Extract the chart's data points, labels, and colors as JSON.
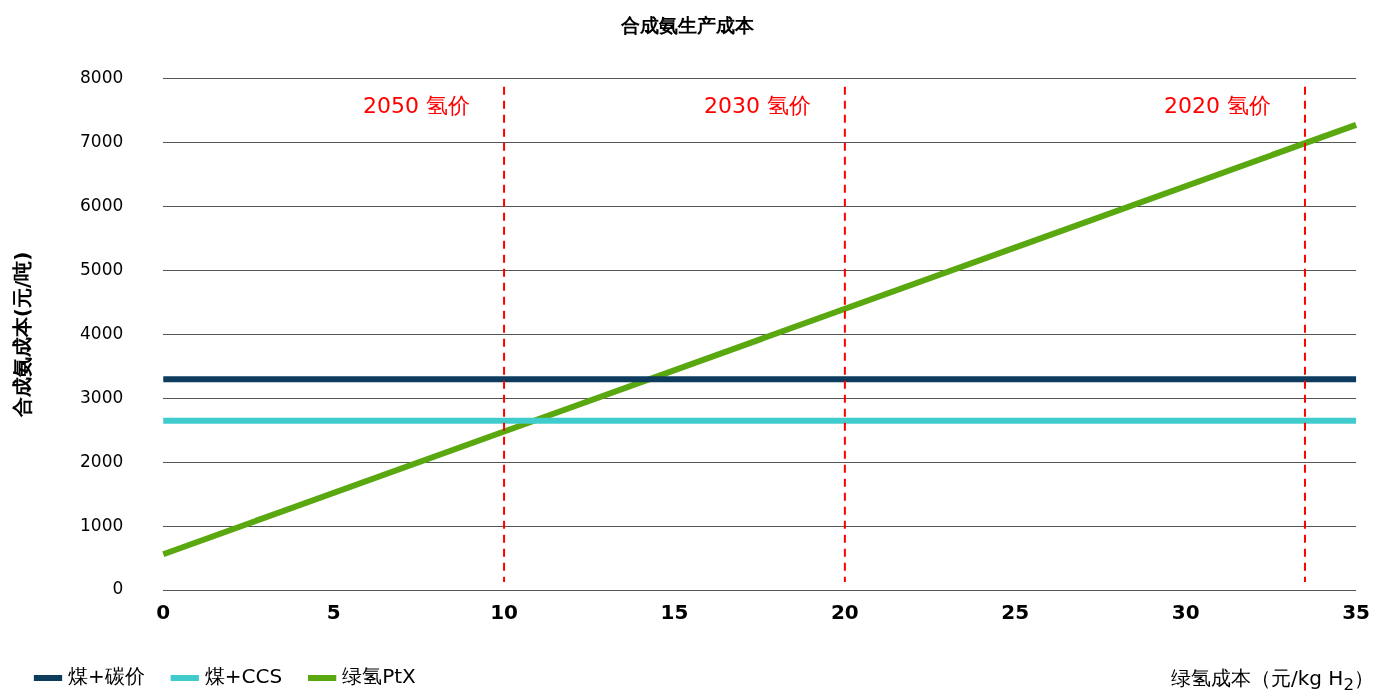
{
  "chart_data": {
    "type": "line",
    "title": "合成氨生产成本",
    "xlabel": "绿氢成本（元/kg H$_{2}$）",
    "ylabel": "合成氨成本(元/吨)",
    "xlim": [
      0,
      35
    ],
    "xticks": [
      0,
      5,
      10,
      15,
      20,
      25,
      30,
      35
    ],
    "ylim": [
      0,
      8000
    ],
    "yticks": [
      0,
      1000,
      2000,
      3000,
      4000,
      5000,
      6000,
      7000,
      8000
    ],
    "x": [
      0,
      35
    ],
    "grid": "y",
    "legend": "bottom left",
    "marker": "none",
    "line_style": "solid",
    "series": [
      {
        "name": "煤+碳价",
        "color": "#0d3c5e",
        "values": [
          3300,
          3300
        ]
      },
      {
        "name": "煤+CCS",
        "color": "#40cccc",
        "values": [
          2650,
          2650
        ]
      },
      {
        "name": "绿氢PtX",
        "color": "#5aa80f",
        "values": [
          560,
          7280
        ]
      }
    ],
    "ref_lines": [
      {
        "axis": "x",
        "value": 10,
        "label": "2050 氢价",
        "color": "#ff0000",
        "line_style": "dashed"
      },
      {
        "axis": "x",
        "value": 20,
        "label": "2030 氢价",
        "color": "#ff0000",
        "line_style": "dashed"
      },
      {
        "axis": "x",
        "value": 33.5,
        "label": "2020 氢价",
        "color": "#ff0000",
        "line_style": "dashed"
      }
    ]
  }
}
